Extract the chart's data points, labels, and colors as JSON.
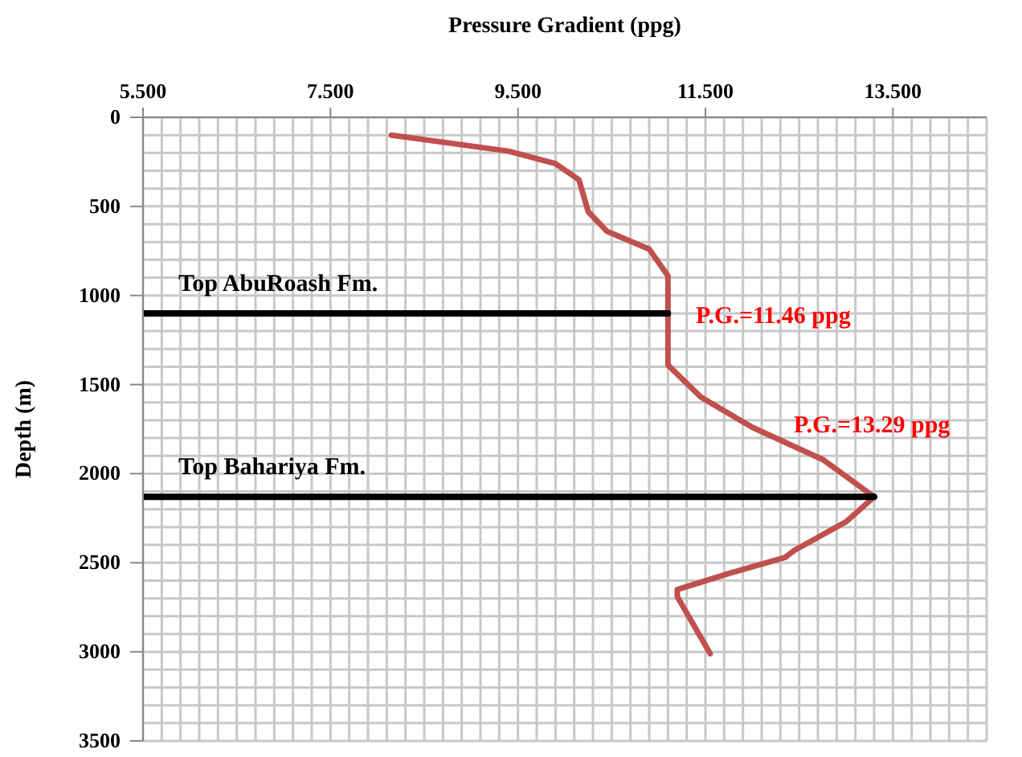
{
  "chart_data": {
    "type": "line",
    "xlabel": "Pressure Gradient (ppg)",
    "ylabel": "Depth (m)",
    "xlim": [
      5.5,
      14.5
    ],
    "ylim": [
      3500,
      0
    ],
    "xticks": [
      {
        "value": 5.5,
        "label": "5.500"
      },
      {
        "value": 5.7,
        "label": null
      },
      {
        "value": 5.9,
        "label": null
      },
      {
        "value": 6.1,
        "label": null
      },
      {
        "value": 6.3,
        "label": null
      },
      {
        "value": 6.5,
        "label": null
      },
      {
        "value": 6.7,
        "label": null
      },
      {
        "value": 6.9,
        "label": null
      },
      {
        "value": 7.1,
        "label": null
      },
      {
        "value": 7.3,
        "label": null
      },
      {
        "value": 7.5,
        "label": "7.500"
      },
      {
        "value": 7.7,
        "label": null
      },
      {
        "value": 7.9,
        "label": null
      },
      {
        "value": 8.1,
        "label": null
      },
      {
        "value": 8.3,
        "label": null
      },
      {
        "value": 8.5,
        "label": null
      },
      {
        "value": 8.7,
        "label": null
      },
      {
        "value": 8.9,
        "label": null
      },
      {
        "value": 9.1,
        "label": null
      },
      {
        "value": 9.3,
        "label": null
      },
      {
        "value": 9.5,
        "label": "9.500"
      },
      {
        "value": 9.7,
        "label": null
      },
      {
        "value": 9.9,
        "label": null
      },
      {
        "value": 10.1,
        "label": null
      },
      {
        "value": 10.3,
        "label": null
      },
      {
        "value": 10.5,
        "label": null
      },
      {
        "value": 10.7,
        "label": null
      },
      {
        "value": 10.9,
        "label": null
      },
      {
        "value": 11.1,
        "label": null
      },
      {
        "value": 11.3,
        "label": null
      },
      {
        "value": 11.5,
        "label": "11.500"
      },
      {
        "value": 11.7,
        "label": null
      },
      {
        "value": 11.9,
        "label": null
      },
      {
        "value": 12.1,
        "label": null
      },
      {
        "value": 12.3,
        "label": null
      },
      {
        "value": 12.5,
        "label": null
      },
      {
        "value": 12.7,
        "label": null
      },
      {
        "value": 12.9,
        "label": null
      },
      {
        "value": 13.1,
        "label": null
      },
      {
        "value": 13.3,
        "label": null
      },
      {
        "value": 13.5,
        "label": "13.500"
      },
      {
        "value": 13.7,
        "label": null
      },
      {
        "value": 13.9,
        "label": null
      },
      {
        "value": 14.1,
        "label": null
      },
      {
        "value": 14.3,
        "label": null
      },
      {
        "value": 14.5,
        "label": null
      }
    ],
    "yticks": [
      0,
      {
        "value": 100,
        "label": null
      },
      {
        "value": 200,
        "label": null
      },
      {
        "value": 300,
        "label": null
      },
      {
        "value": 400,
        "label": null
      },
      500,
      {
        "value": 600,
        "label": null
      },
      {
        "value": 700,
        "label": null
      },
      {
        "value": 800,
        "label": null
      },
      {
        "value": 900,
        "label": null
      },
      1000,
      {
        "value": 1100,
        "label": null
      },
      {
        "value": 1200,
        "label": null
      },
      {
        "value": 1300,
        "label": null
      },
      {
        "value": 1400,
        "label": null
      },
      1500,
      {
        "value": 1600,
        "label": null
      },
      {
        "value": 1700,
        "label": null
      },
      {
        "value": 1800,
        "label": null
      },
      {
        "value": 1900,
        "label": null
      },
      2000,
      {
        "value": 2100,
        "label": null
      },
      {
        "value": 2200,
        "label": null
      },
      {
        "value": 2300,
        "label": null
      },
      {
        "value": 2400,
        "label": null
      },
      2500,
      {
        "value": 2600,
        "label": null
      },
      {
        "value": 2700,
        "label": null
      },
      {
        "value": 2800,
        "label": null
      },
      {
        "value": 2900,
        "label": null
      },
      3000,
      {
        "value": 3100,
        "label": null
      },
      {
        "value": 3200,
        "label": null
      },
      {
        "value": 3300,
        "label": null
      },
      {
        "value": 3400,
        "label": null
      },
      3500
    ],
    "grid": true,
    "marker": "none",
    "line_style": "solid",
    "series": [
      {
        "color": "#c0504d",
        "x": [
          8.15,
          9.4,
          9.9,
          10.15,
          10.25,
          10.45,
          10.9,
          11.1,
          11.1,
          11.1,
          11.45,
          12.0,
          12.75,
          13.3,
          13.0,
          12.45,
          12.35,
          11.75,
          11.2,
          11.2,
          11.55
        ],
        "values": [
          100,
          190,
          260,
          350,
          530,
          640,
          740,
          890,
          1040,
          1390,
          1570,
          1740,
          1920,
          2130,
          2270,
          2430,
          2470,
          2560,
          2650,
          2690,
          3010
        ]
      },
      {
        "name": "Top AbuRoash  Fm.",
        "color": "#000000",
        "x": [
          5.5,
          11.1
        ],
        "values": [
          1100,
          1100
        ]
      },
      {
        "name": "Top Bahariya  Fm.",
        "color": "#000000",
        "x": [
          5.5,
          13.3
        ],
        "values": [
          2130,
          2130
        ]
      }
    ],
    "annotations": [
      "P.G.=11.46 ppg",
      "P.G.=13.29 ppg"
    ]
  }
}
